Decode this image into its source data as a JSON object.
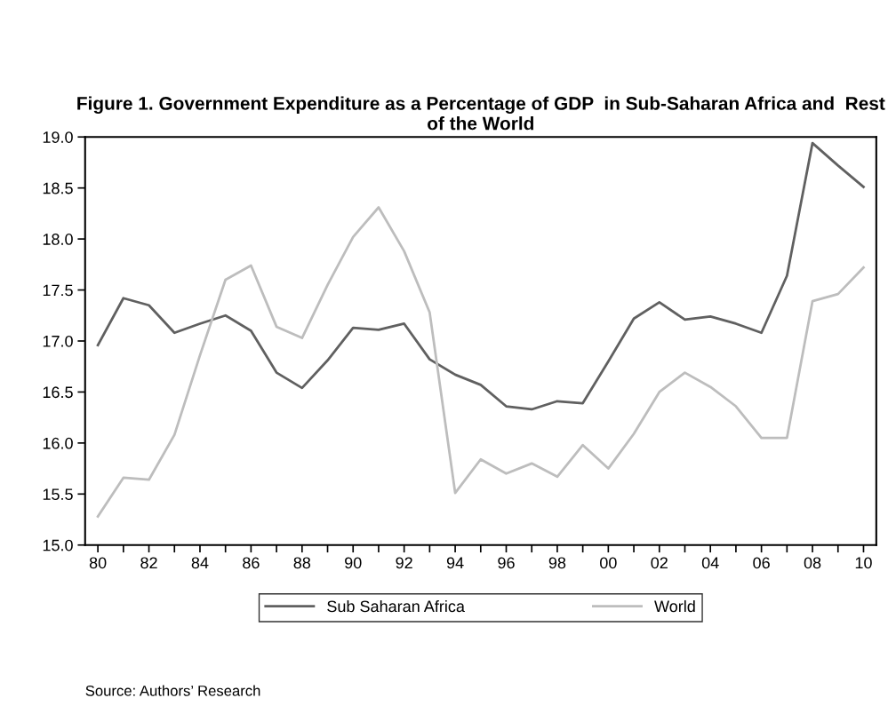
{
  "chart_data": {
    "type": "line",
    "title": "Figure 1. Government Expenditure as a Percentage of GDP  in Sub-Saharan Africa and  Rest of the World",
    "categories": [
      "80",
      null,
      "82",
      null,
      "84",
      null,
      "86",
      null,
      "88",
      null,
      "90",
      null,
      "92",
      null,
      "94",
      null,
      "96",
      null,
      "98",
      null,
      "00",
      null,
      "02",
      null,
      "04",
      null,
      "06",
      null,
      "08",
      null,
      "10"
    ],
    "series": [
      {
        "name": "Sub Saharan Africa",
        "color": "#606060",
        "values": [
          16.96,
          17.42,
          17.35,
          17.08,
          17.17,
          17.25,
          17.1,
          16.69,
          16.54,
          16.81,
          17.13,
          17.11,
          17.17,
          16.82,
          16.67,
          16.57,
          16.36,
          16.33,
          16.41,
          16.39,
          16.8,
          17.22,
          17.38,
          17.21,
          17.24,
          17.17,
          17.08,
          17.64,
          18.94,
          18.72,
          18.51
        ]
      },
      {
        "name": "World",
        "color": "#bdbdbd",
        "values": [
          15.28,
          15.66,
          15.64,
          16.08,
          16.86,
          17.6,
          17.74,
          17.14,
          17.03,
          17.55,
          18.02,
          18.31,
          17.88,
          17.28,
          15.51,
          15.84,
          15.7,
          15.8,
          15.67,
          15.98,
          15.75,
          16.09,
          16.5,
          16.69,
          16.55,
          16.36,
          16.05,
          16.05,
          17.39,
          17.46,
          17.72
        ]
      }
    ],
    "ylim": [
      15.0,
      19.0
    ],
    "yticks": [
      {
        "value": 15.0,
        "label": "15.0"
      },
      {
        "value": 15.5,
        "label": "15.5"
      },
      {
        "value": 16.0,
        "label": "16.0"
      },
      {
        "value": 16.5,
        "label": "16.5"
      },
      {
        "value": 17.0,
        "label": "17.0"
      },
      {
        "value": 17.5,
        "label": "17.5"
      },
      {
        "value": 18.0,
        "label": "18.0"
      },
      {
        "value": 18.5,
        "label": "18.5"
      },
      {
        "value": 19.0,
        "label": "19.0"
      }
    ],
    "grid": false,
    "legend": "bottom",
    "marker": "none",
    "line_style": "solid",
    "annotations": [
      "Source: Authors’ Research"
    ]
  }
}
